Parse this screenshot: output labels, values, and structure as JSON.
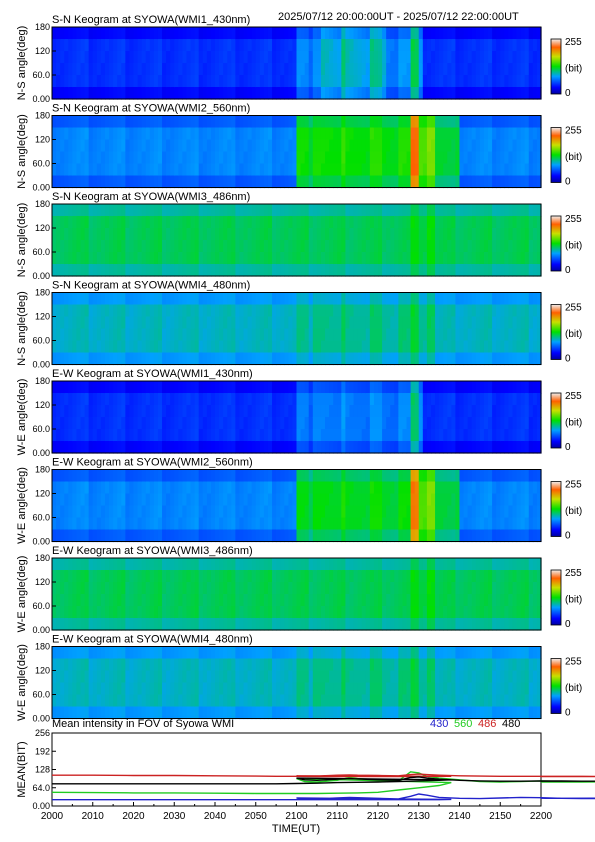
{
  "chart_data": [
    {
      "type": "heatmap",
      "title": "S-N Keogram at SYOWA(WMI1_430nm)",
      "ylabel": "N-S angle(deg)",
      "yticks": [
        "180",
        "120",
        "60.0",
        "0.00"
      ],
      "ylim": [
        0,
        180
      ],
      "colorbar": {
        "max_label": "255",
        "unit_label": "(bit)",
        "min_label": "0",
        "range": [
          0,
          255
        ]
      },
      "base": 45,
      "brighten": [
        [
          2100,
          2130,
          28
        ],
        [
          2128,
          2131,
          40
        ],
        [
          2106,
          2122,
          18
        ]
      ]
    },
    {
      "type": "heatmap",
      "title": "S-N Keogram at SYOWA(WMI2_560nm)",
      "ylabel": "N-S angle(deg)",
      "yticks": [
        "180",
        "120",
        "60.0",
        "0.00"
      ],
      "ylim": [
        0,
        180
      ],
      "colorbar": {
        "max_label": "255",
        "unit_label": "(bit)",
        "min_label": "0",
        "range": [
          0,
          255
        ]
      },
      "base": 72,
      "brighten": [
        [
          2100,
          2130,
          58
        ],
        [
          2128,
          2134,
          82
        ],
        [
          2134,
          2140,
          46
        ]
      ]
    },
    {
      "type": "heatmap",
      "title": "S-N Keogram at SYOWA(WMI3_486nm)",
      "ylabel": "N-S angle(deg)",
      "yticks": [
        "180",
        "120",
        "60.0",
        "0.00"
      ],
      "ylim": [
        0,
        180
      ],
      "colorbar": {
        "max_label": "255",
        "unit_label": "(bit)",
        "min_label": "0",
        "range": [
          0,
          255
        ]
      },
      "base": 112,
      "brighten": [
        [
          2128,
          2134,
          12
        ]
      ]
    },
    {
      "type": "heatmap",
      "title": "S-N Keogram at SYOWA(WMI4_480nm)",
      "ylabel": "N-S angle(deg)",
      "yticks": [
        "180",
        "120",
        "60.0",
        "0.00"
      ],
      "ylim": [
        0,
        180
      ],
      "colorbar": {
        "max_label": "255",
        "unit_label": "(bit)",
        "min_label": "0",
        "range": [
          0,
          255
        ]
      },
      "base": 92,
      "brighten": [
        [
          2100,
          2130,
          10
        ],
        [
          2128,
          2134,
          16
        ]
      ]
    },
    {
      "type": "heatmap",
      "title": "E-W Keogram at SYOWA(WMI1_430nm)",
      "ylabel": "W-E angle(deg)",
      "yticks": [
        "180",
        "120",
        "60.0",
        "0.00"
      ],
      "ylim": [
        0,
        180
      ],
      "colorbar": {
        "max_label": "255",
        "unit_label": "(bit)",
        "min_label": "0",
        "range": [
          0,
          255
        ]
      },
      "base": 45,
      "brighten": [
        [
          2100,
          2130,
          24
        ],
        [
          2128,
          2131,
          38
        ]
      ]
    },
    {
      "type": "heatmap",
      "title": "E-W Keogram at SYOWA(WMI2_560nm)",
      "ylabel": "W-E angle(deg)",
      "yticks": [
        "180",
        "120",
        "60.0",
        "0.00"
      ],
      "ylim": [
        0,
        180
      ],
      "colorbar": {
        "max_label": "255",
        "unit_label": "(bit)",
        "min_label": "0",
        "range": [
          0,
          255
        ]
      },
      "base": 72,
      "brighten": [
        [
          2100,
          2130,
          52
        ],
        [
          2128,
          2134,
          82
        ],
        [
          2134,
          2140,
          44
        ]
      ]
    },
    {
      "type": "heatmap",
      "title": "E-W Keogram at SYOWA(WMI3_486nm)",
      "ylabel": "W-E angle(deg)",
      "yticks": [
        "180",
        "120",
        "60.0",
        "0.00"
      ],
      "ylim": [
        0,
        180
      ],
      "colorbar": {
        "max_label": "255",
        "unit_label": "(bit)",
        "min_label": "0",
        "range": [
          0,
          255
        ]
      },
      "base": 112,
      "brighten": [
        [
          2128,
          2134,
          12
        ]
      ]
    },
    {
      "type": "heatmap",
      "title": "E-W Keogram at SYOWA(WMI4_480nm)",
      "ylabel": "W-E angle(deg)",
      "yticks": [
        "180",
        "120",
        "60.0",
        "0.00"
      ],
      "ylim": [
        0,
        180
      ],
      "colorbar": {
        "max_label": "255",
        "unit_label": "(bit)",
        "min_label": "0",
        "range": [
          0,
          255
        ]
      },
      "base": 92,
      "brighten": [
        [
          2100,
          2130,
          10
        ],
        [
          2128,
          2134,
          14
        ]
      ]
    },
    {
      "type": "line",
      "title": "Mean intensity in FOV of Syowa WMI",
      "xlabel": "TIME(UT)",
      "ylabel": "MEAN(BIT)",
      "ylim": [
        0,
        256
      ],
      "yticks": [
        "256",
        "192",
        "128",
        "64.0",
        "0.00"
      ],
      "xlim": [
        2000,
        2200
      ],
      "x": [
        2000,
        2010,
        2020,
        2030,
        2040,
        2050,
        2055,
        2060,
        2065,
        2070,
        2075,
        2080,
        2085,
        2090,
        2095,
        2098,
        2100,
        2102,
        2105,
        2110,
        2113,
        2115,
        2120,
        2125,
        2128,
        2130,
        2132,
        2135,
        2140,
        2145,
        2150,
        2155,
        2160,
        2165,
        2170,
        2175,
        2180,
        2185,
        2190,
        2195,
        2200
      ],
      "series": [
        {
          "name": "430",
          "color": "#2222cc",
          "values": [
            22,
            22,
            22,
            22,
            22,
            22,
            22,
            22,
            22,
            22,
            22,
            22,
            22,
            22,
            22,
            23,
            28,
            24,
            25,
            28,
            30,
            29,
            27,
            25,
            34,
            42,
            38,
            30,
            27,
            26,
            28,
            30,
            29,
            27,
            26,
            26,
            28,
            30,
            29,
            28,
            27
          ]
        },
        {
          "name": "560",
          "color": "#22cc22",
          "values": [
            48,
            47,
            46,
            46,
            45,
            44,
            44,
            44,
            44,
            45,
            46,
            48,
            56,
            64,
            72,
            82,
            96,
            86,
            84,
            90,
            100,
            96,
            92,
            88,
            120,
            116,
            104,
            98,
            92,
            86,
            84,
            86,
            88,
            86,
            84,
            85,
            86,
            87,
            86,
            85,
            84
          ]
        },
        {
          "name": "486",
          "color": "#cc2222",
          "values": [
            108,
            108,
            107,
            107,
            106,
            105,
            104,
            104,
            103,
            103,
            103,
            103,
            103,
            103,
            104,
            104,
            106,
            104,
            105,
            108,
            109,
            108,
            107,
            106,
            110,
            112,
            110,
            108,
            106,
            105,
            104,
            104,
            104,
            104,
            104,
            103,
            103,
            103,
            103,
            103,
            103
          ]
        },
        {
          "name": "480",
          "color": "#000000",
          "values": [
            78,
            78,
            78,
            78,
            78,
            78,
            78,
            79,
            80,
            82,
            83,
            84,
            86,
            88,
            90,
            92,
            98,
            92,
            90,
            94,
            96,
            95,
            92,
            90,
            100,
            102,
            98,
            94,
            90,
            88,
            87,
            87,
            88,
            88,
            87,
            87,
            88,
            88,
            88,
            87,
            87
          ]
        }
      ]
    }
  ],
  "header": {
    "time_range": "2025/07/12 20:00:00UT - 2025/07/12 22:00:00UT"
  },
  "time_axis": {
    "ticks": [
      "2000",
      "2010",
      "2020",
      "2030",
      "2040",
      "2050",
      "2100",
      "2110",
      "2120",
      "2130",
      "2140",
      "2150",
      "2200"
    ]
  },
  "legend": [
    "430",
    "560",
    "486",
    "480"
  ]
}
